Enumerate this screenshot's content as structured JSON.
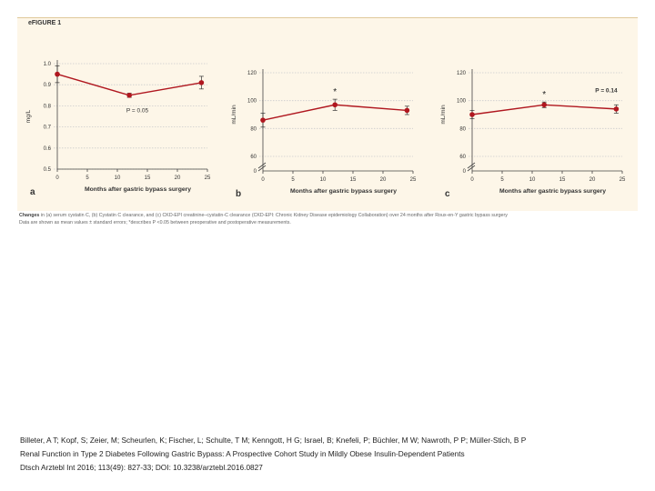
{
  "figure": {
    "label": "eFIGURE 1",
    "caption_lead": "Changes",
    "caption_rest": " in (a) serum cystatin C, (b) Cystatin C clearance, and (c) CKD-EPI creatinine–cystatin-C clearance (CKD-EPI: Chronic Kidney Disease epidemiology Collaboration) over 24 months after Roux-en-Y gastric bypass surgery",
    "caption_line2": "Data are shown as mean values ± standard errors; *describes  P <0.05 between preoperative and postoperative measurements."
  },
  "citation": {
    "authors": "Billeter, A T; Kopf, S; Zeier, M; Scheurlen, K; Fischer, L; Schulte, T M; Kenngott, H G; Israel, B; Knefeli, P; Büchler, M W; Nawroth, P P; Müller-Stich, B P",
    "title": "Renal Function in Type 2 Diabetes Following Gastric Bypass: A Prospective Cohort Study in Mildly Obese Insulin-Dependent Patients",
    "journal": "Dtsch Arztebl Int 2016; 113(49): 827-33; DOI: 10.3238/arztebl.2016.0827"
  },
  "colors": {
    "line": "#b0171f",
    "grid": "#cccccc",
    "background": "#fdf6e8"
  },
  "chart_data": [
    {
      "type": "line",
      "panel": "a",
      "xlabel": "Months after gastric bypass surgery",
      "ylabel": "mg/L",
      "xlim": [
        0,
        25
      ],
      "ylim": [
        0.5,
        1.0
      ],
      "xticks": [
        0,
        5,
        10,
        15,
        20,
        25
      ],
      "xtick_labels": [
        "0",
        "5",
        "10",
        "15",
        "20",
        "25"
      ],
      "yticks": [
        0.5,
        0.6,
        0.7,
        0.8,
        0.9,
        1.0
      ],
      "ytick_labels": [
        "0.5",
        "0.6",
        "0.7",
        "0.8",
        "0.9",
        "1.0"
      ],
      "axis_break": false,
      "x": [
        0,
        12,
        24
      ],
      "values": [
        0.95,
        0.85,
        0.91
      ],
      "errors": [
        0.04,
        0.01,
        0.03
      ],
      "stars": [
        false,
        false,
        false
      ],
      "annotation": {
        "text": "P = 0.05",
        "x": 11.5,
        "y": 0.77
      }
    },
    {
      "type": "line",
      "panel": "b",
      "xlabel": "Months after gastric bypass surgery",
      "ylabel": "mL/min",
      "xlim": [
        0,
        25
      ],
      "ylim": [
        60,
        120
      ],
      "xticks": [
        0,
        5,
        10,
        15,
        20,
        25
      ],
      "xtick_labels": [
        "0",
        "5",
        "10",
        "15",
        "20",
        "25"
      ],
      "yticks": [
        60,
        80,
        100,
        120
      ],
      "ytick_labels": [
        "60",
        "80",
        "100",
        "120"
      ],
      "axis_break": true,
      "zero_label": "0",
      "x": [
        0,
        12,
        24
      ],
      "values": [
        86,
        97,
        93
      ],
      "errors": [
        5,
        4,
        3
      ],
      "stars": [
        false,
        true,
        false
      ],
      "star_label": "*",
      "annotation": null
    },
    {
      "type": "line",
      "panel": "c",
      "xlabel": "Months after gastric bypass surgery",
      "ylabel": "mL/min",
      "xlim": [
        0,
        25
      ],
      "ylim": [
        60,
        120
      ],
      "xticks": [
        0,
        5,
        10,
        15,
        20,
        25
      ],
      "xtick_labels": [
        "0",
        "5",
        "10",
        "15",
        "20",
        "25"
      ],
      "yticks": [
        60,
        80,
        100,
        120
      ],
      "ytick_labels": [
        "60",
        "80",
        "100",
        "120"
      ],
      "axis_break": true,
      "zero_label": "0",
      "x": [
        0,
        12,
        24
      ],
      "values": [
        90,
        97,
        94
      ],
      "errors": [
        3,
        2,
        3
      ],
      "stars": [
        false,
        true,
        false
      ],
      "star_label": "*",
      "annotation": {
        "text": "P = 0.14",
        "x": 20.5,
        "y": 106
      }
    }
  ]
}
